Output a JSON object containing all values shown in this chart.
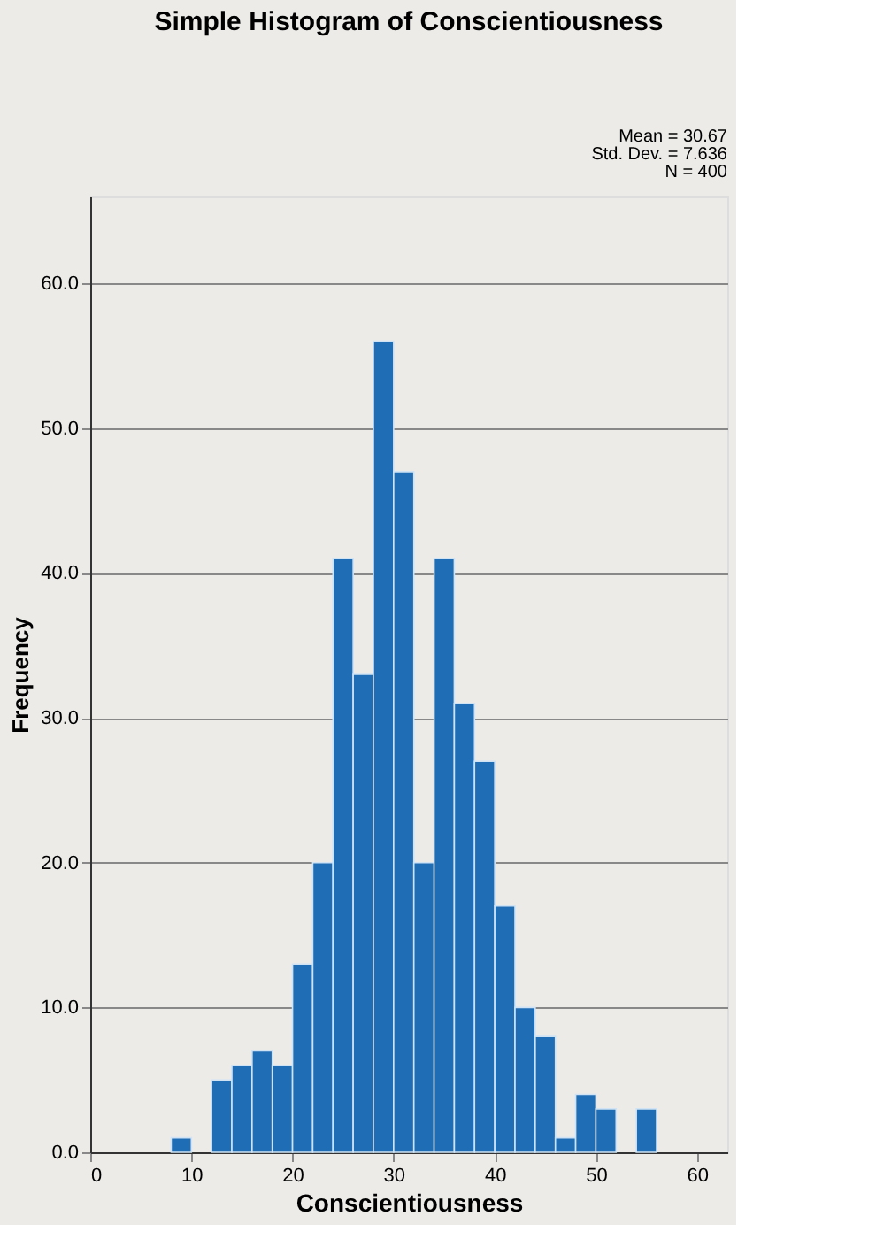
{
  "chart_data": {
    "type": "histogram",
    "title": "Simple Histogram of Conscientiousness",
    "xlabel": "Conscientiousness",
    "ylabel": "Frequency",
    "bins": [
      8,
      10,
      12,
      14,
      16,
      18,
      20,
      22,
      24,
      26,
      28,
      30,
      32,
      34,
      36,
      38,
      40,
      42,
      44,
      46,
      48,
      50,
      52,
      54,
      56
    ],
    "values": [
      1,
      0,
      5,
      6,
      7,
      6,
      13,
      20,
      41,
      33,
      56,
      47,
      20,
      41,
      31,
      27,
      17,
      10,
      8,
      1,
      4,
      3,
      0,
      3
    ],
    "color": "#1f6db5",
    "xlim": [
      0,
      63
    ],
    "xticks": [
      0,
      10,
      20,
      30,
      40,
      50,
      60
    ],
    "ylim": [
      0,
      66
    ],
    "yticks": [
      {
        "value": 0,
        "label": "0.0"
      },
      {
        "value": 10,
        "label": "10.0"
      },
      {
        "value": 20,
        "label": "20.0"
      },
      {
        "value": 30,
        "label": "30.0"
      },
      {
        "value": 40,
        "label": "40.0"
      },
      {
        "value": 50,
        "label": "50.0"
      },
      {
        "value": 60,
        "label": "60.0"
      }
    ],
    "grid": "y",
    "annotations": [
      "Mean = 30.67",
      "Std. Dev. = 7.636",
      "N = 400"
    ]
  }
}
